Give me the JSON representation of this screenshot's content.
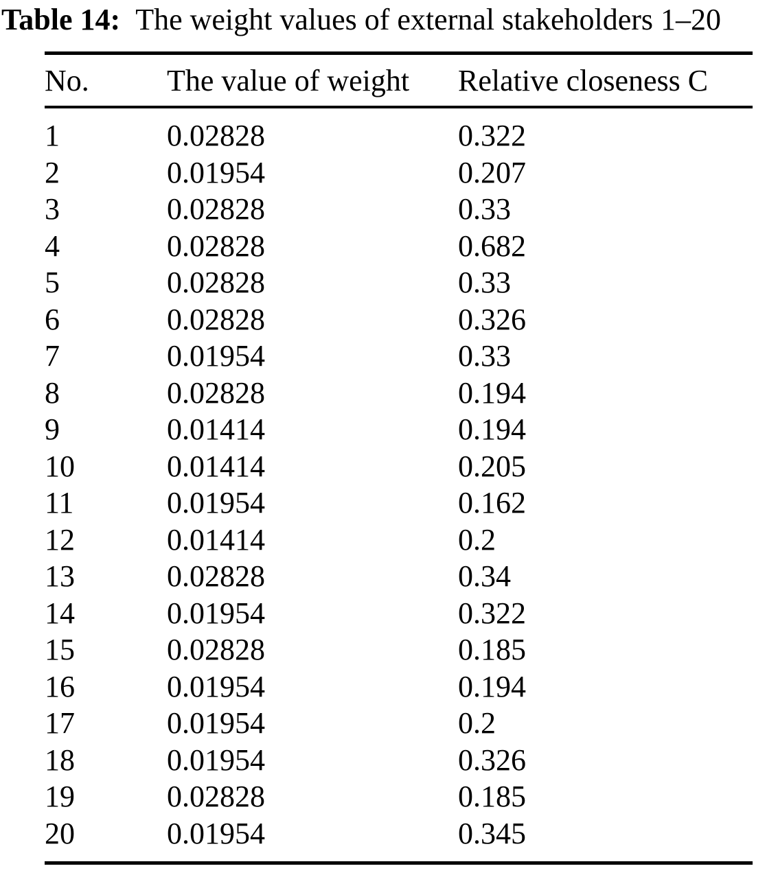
{
  "caption": {
    "label": "Table 14:",
    "text": "The weight values of external stakeholders 1–20"
  },
  "table": {
    "columns": [
      "No.",
      "The value of weight",
      "Relative closeness C"
    ],
    "rows": [
      {
        "no": "1",
        "weight": "0.02828",
        "closeness": "0.322"
      },
      {
        "no": "2",
        "weight": "0.01954",
        "closeness": "0.207"
      },
      {
        "no": "3",
        "weight": "0.02828",
        "closeness": "0.33"
      },
      {
        "no": "4",
        "weight": "0.02828",
        "closeness": "0.682"
      },
      {
        "no": "5",
        "weight": "0.02828",
        "closeness": "0.33"
      },
      {
        "no": "6",
        "weight": "0.02828",
        "closeness": "0.326"
      },
      {
        "no": "7",
        "weight": "0.01954",
        "closeness": "0.33"
      },
      {
        "no": "8",
        "weight": "0.02828",
        "closeness": "0.194"
      },
      {
        "no": "9",
        "weight": "0.01414",
        "closeness": "0.194"
      },
      {
        "no": "10",
        "weight": "0.01414",
        "closeness": "0.205"
      },
      {
        "no": "11",
        "weight": "0.01954",
        "closeness": "0.162"
      },
      {
        "no": "12",
        "weight": "0.01414",
        "closeness": "0.2"
      },
      {
        "no": "13",
        "weight": "0.02828",
        "closeness": "0.34"
      },
      {
        "no": "14",
        "weight": "0.01954",
        "closeness": "0.322"
      },
      {
        "no": "15",
        "weight": "0.02828",
        "closeness": "0.185"
      },
      {
        "no": "16",
        "weight": "0.01954",
        "closeness": "0.194"
      },
      {
        "no": "17",
        "weight": "0.01954",
        "closeness": "0.2"
      },
      {
        "no": "18",
        "weight": "0.01954",
        "closeness": "0.326"
      },
      {
        "no": "19",
        "weight": "0.02828",
        "closeness": "0.185"
      },
      {
        "no": "20",
        "weight": "0.01954",
        "closeness": "0.345"
      }
    ]
  },
  "colors": {
    "text": "#000000",
    "background": "#ffffff",
    "rule": "#000000"
  }
}
